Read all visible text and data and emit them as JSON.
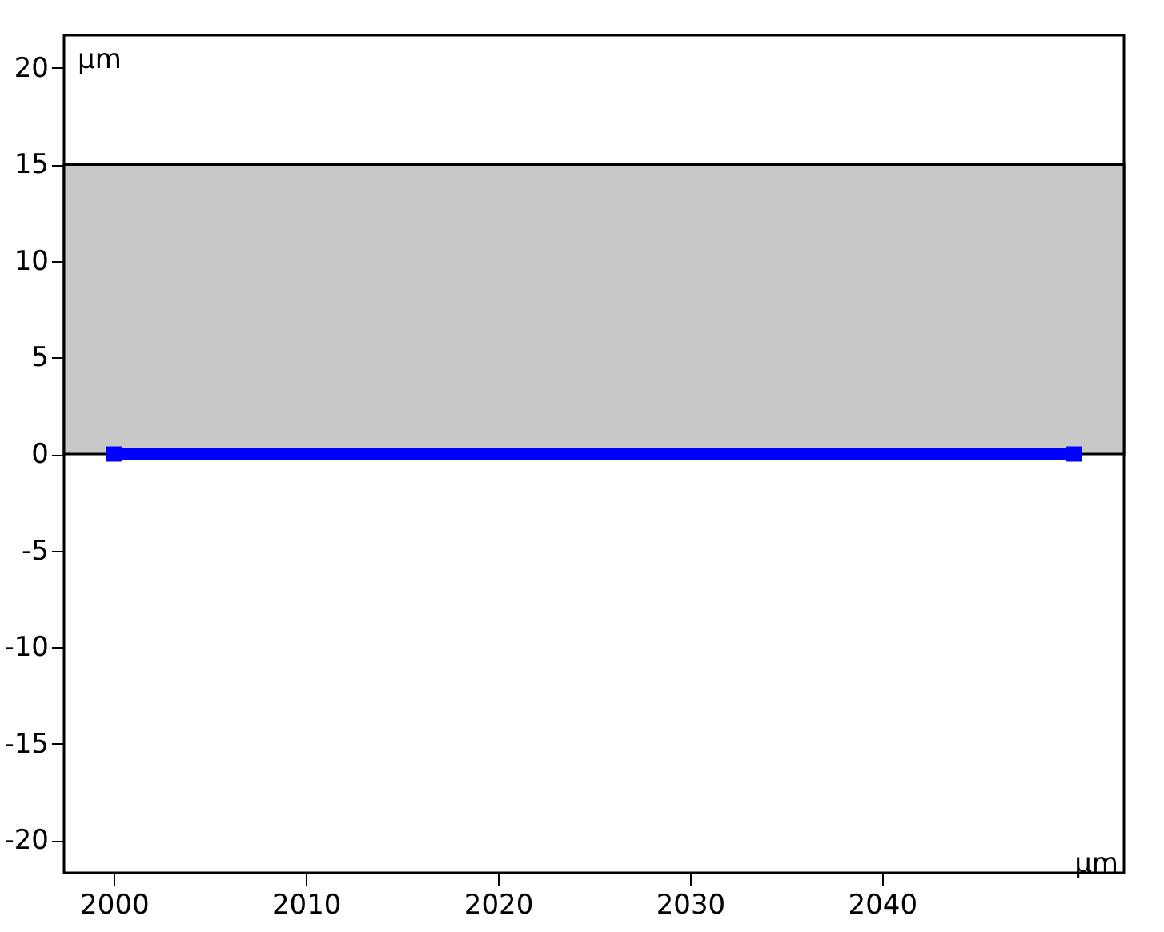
{
  "chart_data": {
    "type": "line",
    "xlabel": "μm",
    "ylabel": "μm",
    "x": [
      2000,
      2050
    ],
    "series": [
      {
        "color": "#0000ff",
        "values": [
          0,
          0
        ]
      }
    ],
    "xlim": [
      1997.4,
      2052.6
    ],
    "xticks": [
      2000,
      2010,
      2020,
      2030,
      2040
    ],
    "ylim": [
      -21.7,
      21.7
    ],
    "yticks": [
      -20,
      -15,
      -10,
      -5,
      0,
      5,
      10,
      15,
      20
    ],
    "bands": [
      {
        "axis": "y",
        "from": 0,
        "to": 15,
        "color": "#c8c8c8"
      }
    ],
    "marker": "square",
    "line_style": "solid",
    "grid": false
  }
}
